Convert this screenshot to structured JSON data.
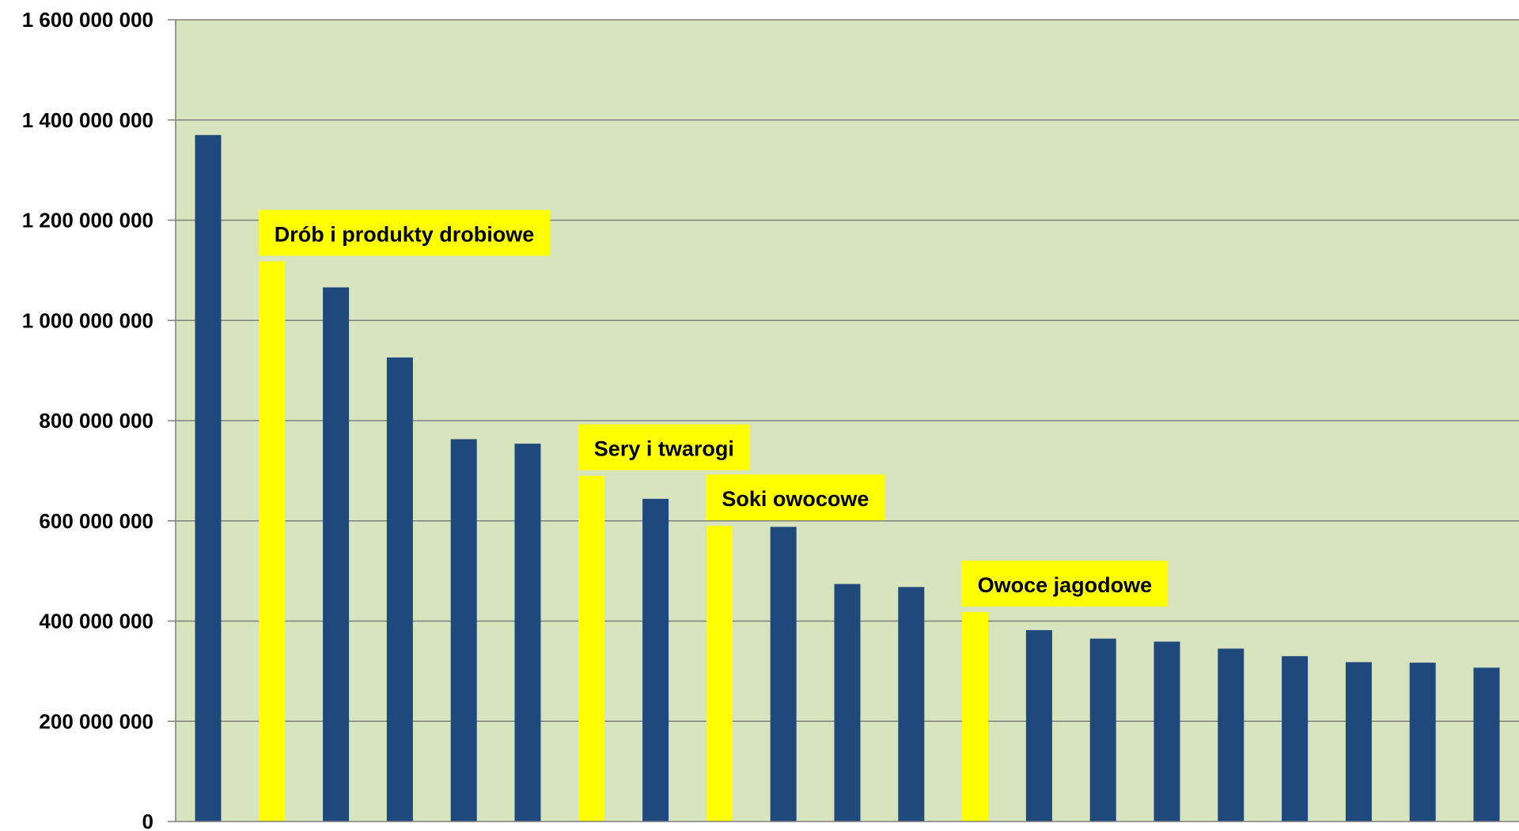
{
  "chart_data": {
    "type": "bar",
    "title": "",
    "xlabel": "",
    "ylabel": "",
    "ylim": [
      0,
      1600000000
    ],
    "yticks": [
      0,
      200000000,
      400000000,
      600000000,
      800000000,
      1000000000,
      1200000000,
      1400000000,
      1600000000
    ],
    "ytick_labels": [
      "0",
      "200 000 000",
      "400 000 000",
      "600 000 000",
      "800 000 000",
      "1 000 000 000",
      "1 200 000 000",
      "1 400 000 000",
      "1 600 000 000"
    ],
    "grid": true,
    "legend": "none",
    "values": [
      1370000000,
      1118000000,
      1066000000,
      926000000,
      763000000,
      754000000,
      690000000,
      644000000,
      590000000,
      588000000,
      474000000,
      468000000,
      418000000,
      382000000,
      365000000,
      359000000,
      345000000,
      330000000,
      318000000,
      317000000,
      307000000
    ],
    "highlighted": [
      1,
      6,
      8,
      12
    ],
    "annotations": [
      {
        "bar_index": 1,
        "text": "Drób i produkty drobiowe"
      },
      {
        "bar_index": 6,
        "text": "Sery i twarogi"
      },
      {
        "bar_index": 8,
        "text": "Soki owocowe"
      },
      {
        "bar_index": 12,
        "text": "Owoce jagodowe"
      }
    ],
    "colors": {
      "bar": "#1f497d",
      "highlight": "#ffff00",
      "plot_background": "#d7e4bd",
      "gridline": "#7f7f7f",
      "annotation_background": "#ffff00"
    }
  }
}
